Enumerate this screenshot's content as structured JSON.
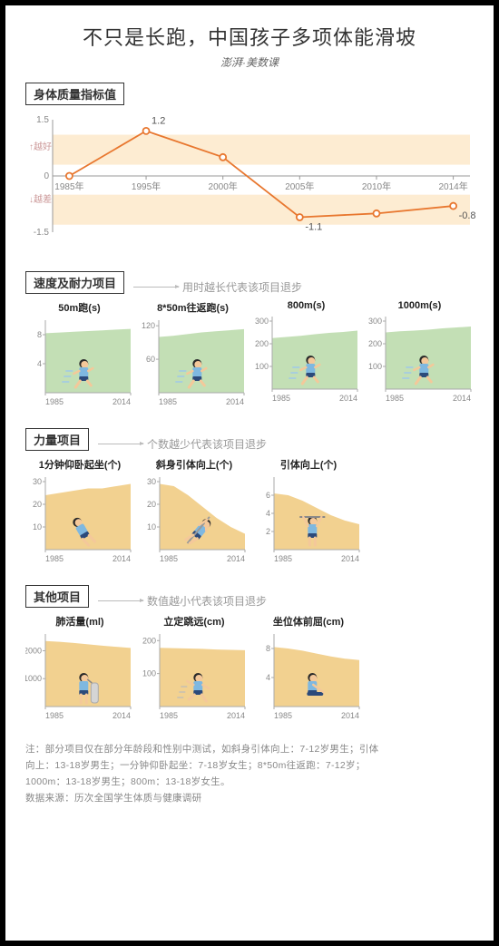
{
  "title": "不只是长跑，中国孩子多项体能滑坡",
  "subtitle": "澎湃·美数课",
  "colors": {
    "frame": "#000000",
    "bg": "#ffffff",
    "text": "#333333",
    "muted": "#999999",
    "band_good": "#fdecd2",
    "band_bad": "#fdecd2",
    "line_accent": "#e8772f",
    "axis": "#999999",
    "green_fill": "#b9d9a8",
    "orange_fill": "#f0c97d",
    "grid": "#dddddd"
  },
  "main_chart": {
    "label": "身体质量指标值",
    "ylim": [
      -1.5,
      1.5
    ],
    "yticks": [
      -1.5,
      0,
      1.5
    ],
    "good_label": "↑越好",
    "bad_label": "↓越差",
    "x_labels": [
      "1985年",
      "1995年",
      "2000年",
      "2005年",
      "2010年",
      "2014年"
    ],
    "values": [
      0,
      1.2,
      0.5,
      -1.1,
      -1.0,
      -0.8
    ],
    "annot": [
      {
        "i": 1,
        "v": "1.2",
        "dy": -8
      },
      {
        "i": 3,
        "v": "-1.1",
        "dy": 14
      },
      {
        "i": 5,
        "v": "-0.8",
        "dy": 14
      }
    ],
    "good_band": [
      0.3,
      1.1
    ],
    "bad_band": [
      -1.3,
      -0.5
    ]
  },
  "speed": {
    "label": "速度及耐力项目",
    "hint": "用时越长代表该项目退步",
    "fill": "green",
    "charts": [
      {
        "title": "50m跑(s)",
        "ymax": 10,
        "yticks": [
          4,
          8
        ],
        "data": [
          8.2,
          8.3,
          8.4,
          8.5,
          8.6,
          8.7,
          8.8
        ]
      },
      {
        "title": "8*50m往返跑(s)",
        "ymax": 130,
        "yticks": [
          60,
          120
        ],
        "data": [
          100,
          102,
          105,
          108,
          110,
          112,
          114
        ]
      },
      {
        "title": "800m(s)",
        "ymax": 320,
        "yticks": [
          100,
          200,
          300
        ],
        "data": [
          225,
          230,
          235,
          242,
          248,
          252,
          258
        ]
      },
      {
        "title": "1000m(s)",
        "ymax": 320,
        "yticks": [
          100,
          200,
          300
        ],
        "data": [
          250,
          255,
          258,
          262,
          268,
          272,
          276
        ]
      }
    ],
    "xlabels": [
      "1985",
      "2014"
    ]
  },
  "strength": {
    "label": "力量项目",
    "hint": "个数越少代表该项目退步",
    "fill": "orange",
    "charts": [
      {
        "title": "1分钟仰卧起坐(个)",
        "ymax": 32,
        "yticks": [
          10,
          20,
          30
        ],
        "data": [
          24,
          25,
          26,
          27,
          27,
          28,
          29
        ]
      },
      {
        "title": "斜身引体向上(个)",
        "ymax": 32,
        "yticks": [
          10,
          20,
          30
        ],
        "data": [
          29,
          28,
          24,
          19,
          14,
          10,
          7
        ]
      },
      {
        "title": "引体向上(个)",
        "ymax": 8,
        "yticks": [
          2,
          4,
          6
        ],
        "data": [
          6.2,
          6.0,
          5.4,
          4.6,
          3.8,
          3.2,
          2.8
        ]
      }
    ],
    "xlabels": [
      "1985",
      "2014"
    ]
  },
  "other": {
    "label": "其他项目",
    "hint": "数值越小代表该项目退步",
    "fill": "orange",
    "charts": [
      {
        "title": "肺活量(ml)",
        "ymax": 2600,
        "yticks": [
          1000,
          2000
        ],
        "data": [
          2350,
          2320,
          2280,
          2230,
          2180,
          2140,
          2100
        ]
      },
      {
        "title": "立定跳远(cm)",
        "ymax": 220,
        "yticks": [
          100,
          200
        ],
        "data": [
          178,
          177,
          176,
          175,
          173,
          172,
          171
        ]
      },
      {
        "title": "坐位体前屈(cm)",
        "ymax": 10,
        "yticks": [
          4,
          8
        ],
        "data": [
          8.2,
          8.0,
          7.7,
          7.3,
          6.9,
          6.6,
          6.4
        ]
      }
    ],
    "xlabels": [
      "1985",
      "2014"
    ]
  },
  "footnote_lines": [
    "注：部分项目仅在部分年龄段和性别中测试，如斜身引体向上：7-12岁男生；引体",
    "向上：13-18岁男生；一分钟仰卧起坐：7-18岁女生；8*50m往返跑：7-12岁；",
    "1000m：13-18岁男生；800m：13-18岁女生。",
    "数据来源：历次全国学生体质与健康调研"
  ]
}
